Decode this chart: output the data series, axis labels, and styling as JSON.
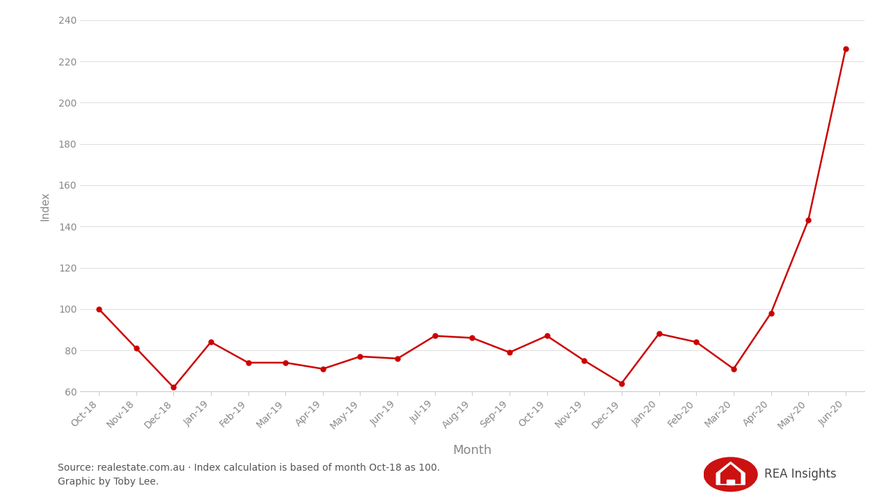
{
  "months": [
    "Oct-18",
    "Nov-18",
    "Dec-18",
    "Jan-19",
    "Feb-19",
    "Mar-19",
    "Apr-19",
    "May-19",
    "Jun-19",
    "Jul-19",
    "Aug-19",
    "Sep-19",
    "Oct-19",
    "Nov-19",
    "Dec-19",
    "Jan-20",
    "Feb-20",
    "Mar-20",
    "Apr-20",
    "May-20",
    "Jun-20"
  ],
  "values": [
    100,
    81,
    62,
    84,
    74,
    74,
    71,
    77,
    76,
    87,
    86,
    79,
    87,
    75,
    64,
    88,
    84,
    71,
    98,
    143,
    226
  ],
  "line_color": "#cc0000",
  "marker_color": "#cc0000",
  "background_color": "#ffffff",
  "grid_color": "#e0e0e0",
  "ylabel": "Index",
  "xlabel": "Month",
  "ylim_min": 60,
  "ylim_max": 240,
  "yticks": [
    60,
    80,
    100,
    120,
    140,
    160,
    180,
    200,
    220,
    240
  ],
  "source_text": "Source: realestate.com.au · Index calculation is based of month Oct-18 as 100.\nGraphic by Toby Lee.",
  "logo_text": "REA Insights",
  "tick_fontsize": 10,
  "source_fontsize": 10,
  "ylabel_fontsize": 11,
  "xlabel_fontsize": 13,
  "tick_color": "#aaaaaa",
  "label_color": "#888888",
  "source_color": "#555555"
}
